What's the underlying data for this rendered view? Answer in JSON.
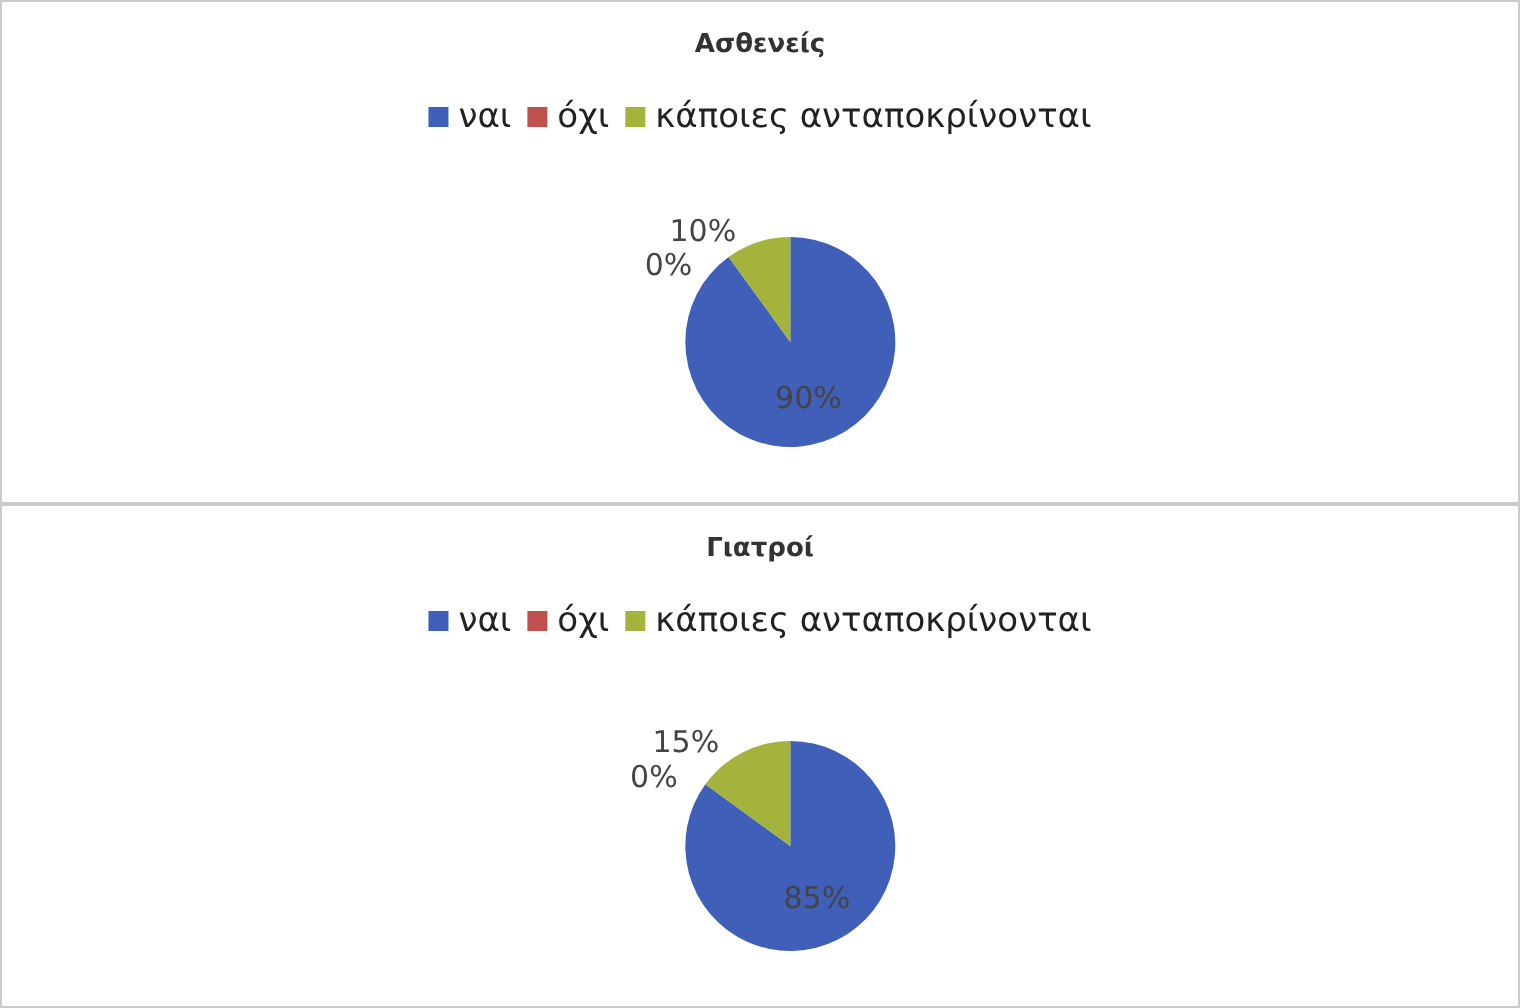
{
  "chart_data": [
    {
      "type": "pie",
      "title": "Ασθενείς",
      "categories": [
        "ναι",
        "όχι",
        "κάποιες ανταποκρίνονται"
      ],
      "values": [
        90,
        0,
        10
      ],
      "colors": [
        "#3f5fb8",
        "#c0504d",
        "#a3b33c"
      ],
      "value_labels": [
        "90%",
        "0%",
        "10%"
      ],
      "legend": "top"
    },
    {
      "type": "pie",
      "title": "Γιατροί",
      "categories": [
        "ναι",
        "όχι",
        "κάποιες ανταποκρίνονται"
      ],
      "values": [
        85,
        0,
        15
      ],
      "colors": [
        "#3f5fb8",
        "#c0504d",
        "#a3b33c"
      ],
      "value_labels": [
        "85%",
        "0%",
        "15%"
      ],
      "legend": "top"
    }
  ]
}
